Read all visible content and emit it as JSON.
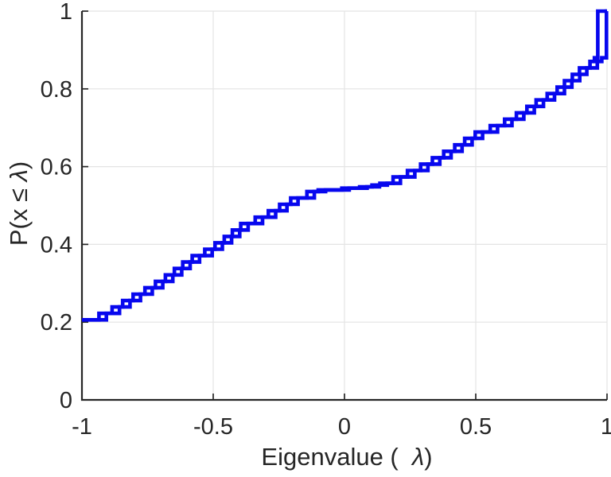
{
  "figure": {
    "background": "#ffffff",
    "colors": {
      "line": "#0707ee",
      "axis": "#262626",
      "grid": "#e4e4e4",
      "text": "#262626"
    }
  },
  "labels": {
    "xlabel_prefix": "Eigenvalue (  ",
    "xlabel_lambda": "λ",
    "xlabel_suffix": ")",
    "ylabel_prefix": "P(x ≤ ",
    "ylabel_lambda": "λ",
    "ylabel_suffix": ")"
  },
  "chart_data": {
    "type": "line",
    "subtype": "ecdf-stairs",
    "title": "",
    "xlabel": "Eigenvalue ( λ)",
    "ylabel": "P(x ≤ λ)",
    "xlim": [
      -1,
      1
    ],
    "ylim": [
      0,
      1
    ],
    "grid": true,
    "legend": "none",
    "x_ticks": {
      "values": [
        -1,
        -0.5,
        0,
        0.5,
        1
      ],
      "labels": [
        "-1",
        "-0.5",
        "0",
        "0.5",
        "1"
      ]
    },
    "y_ticks": {
      "values": [
        0,
        0.2,
        0.4,
        0.6,
        0.8,
        1
      ],
      "labels": [
        "0",
        "0.2",
        "0.4",
        "0.6",
        "0.8",
        "1"
      ]
    },
    "series": [
      {
        "name": "ecdf-stairs-leading",
        "color": "#0707ee",
        "start_value": 0.206,
        "jump_points": [
          [
            -0.935,
            0.2225
          ],
          [
            -0.885,
            0.239
          ],
          [
            -0.845,
            0.2555
          ],
          [
            -0.805,
            0.272
          ],
          [
            -0.76,
            0.2885
          ],
          [
            -0.72,
            0.305
          ],
          [
            -0.682,
            0.3215
          ],
          [
            -0.648,
            0.338
          ],
          [
            -0.616,
            0.3545
          ],
          [
            -0.58,
            0.371
          ],
          [
            -0.532,
            0.3875
          ],
          [
            -0.493,
            0.404
          ],
          [
            -0.458,
            0.4205
          ],
          [
            -0.427,
            0.437
          ],
          [
            -0.395,
            0.4535
          ],
          [
            -0.34,
            0.47
          ],
          [
            -0.29,
            0.4865
          ],
          [
            -0.247,
            0.503
          ],
          [
            -0.205,
            0.5195
          ],
          [
            -0.143,
            0.536
          ],
          [
            -0.1,
            0.54
          ],
          [
            -0.01,
            0.5445
          ],
          [
            0.058,
            0.548
          ],
          [
            0.105,
            0.5525
          ],
          [
            0.135,
            0.557
          ],
          [
            0.185,
            0.5735
          ],
          [
            0.24,
            0.59
          ],
          [
            0.29,
            0.6065
          ],
          [
            0.335,
            0.623
          ],
          [
            0.378,
            0.6395
          ],
          [
            0.42,
            0.656
          ],
          [
            0.458,
            0.6725
          ],
          [
            0.498,
            0.689
          ],
          [
            0.555,
            0.7055
          ],
          [
            0.61,
            0.722
          ],
          [
            0.655,
            0.7385
          ],
          [
            0.695,
            0.755
          ],
          [
            0.73,
            0.7715
          ],
          [
            0.772,
            0.788
          ],
          [
            0.81,
            0.8045
          ],
          [
            0.838,
            0.821
          ],
          [
            0.868,
            0.8375
          ],
          [
            0.895,
            0.854
          ],
          [
            0.935,
            0.8705
          ],
          [
            0.952,
            0.88
          ],
          [
            0.965,
            1.0
          ]
        ]
      },
      {
        "name": "ecdf-stairs-lagging",
        "color": "#0707ee",
        "start_value": 0.206,
        "jump_points": [
          [
            -0.907,
            0.2225
          ],
          [
            -0.857,
            0.239
          ],
          [
            -0.817,
            0.2555
          ],
          [
            -0.777,
            0.272
          ],
          [
            -0.732,
            0.2885
          ],
          [
            -0.692,
            0.305
          ],
          [
            -0.654,
            0.3215
          ],
          [
            -0.62,
            0.338
          ],
          [
            -0.588,
            0.3545
          ],
          [
            -0.552,
            0.371
          ],
          [
            -0.504,
            0.3875
          ],
          [
            -0.465,
            0.404
          ],
          [
            -0.43,
            0.4205
          ],
          [
            -0.399,
            0.437
          ],
          [
            -0.367,
            0.4535
          ],
          [
            -0.312,
            0.47
          ],
          [
            -0.262,
            0.4865
          ],
          [
            -0.219,
            0.503
          ],
          [
            -0.177,
            0.5195
          ],
          [
            -0.115,
            0.536
          ],
          [
            -0.072,
            0.54
          ],
          [
            0.018,
            0.5445
          ],
          [
            0.086,
            0.548
          ],
          [
            0.133,
            0.5525
          ],
          [
            0.163,
            0.557
          ],
          [
            0.213,
            0.5735
          ],
          [
            0.268,
            0.59
          ],
          [
            0.318,
            0.6065
          ],
          [
            0.363,
            0.623
          ],
          [
            0.406,
            0.6395
          ],
          [
            0.448,
            0.656
          ],
          [
            0.486,
            0.6725
          ],
          [
            0.526,
            0.689
          ],
          [
            0.583,
            0.7055
          ],
          [
            0.638,
            0.722
          ],
          [
            0.683,
            0.7385
          ],
          [
            0.723,
            0.755
          ],
          [
            0.758,
            0.7715
          ],
          [
            0.8,
            0.788
          ],
          [
            0.838,
            0.8045
          ],
          [
            0.866,
            0.821
          ],
          [
            0.896,
            0.8375
          ],
          [
            0.923,
            0.854
          ],
          [
            0.963,
            0.8705
          ],
          [
            0.98,
            0.88
          ],
          [
            0.998,
            1.0
          ]
        ]
      }
    ]
  }
}
